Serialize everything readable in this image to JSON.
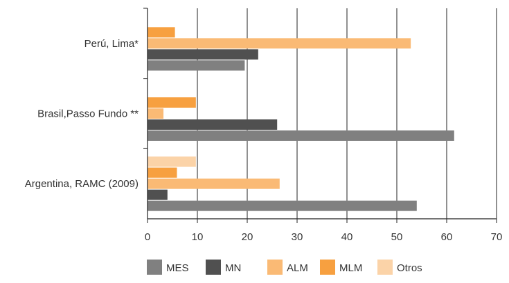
{
  "chart_data": {
    "type": "bar",
    "orientation": "horizontal",
    "categories": [
      "Perú, Lima*",
      "Brasil,Passo Fundo **",
      "Argentina, RAMC (2009)"
    ],
    "series": [
      {
        "name": "MES",
        "color": "#808080",
        "values": [
          19.5,
          61.5,
          54
        ]
      },
      {
        "name": "MN",
        "color": "#505050",
        "values": [
          22.2,
          26,
          4
        ]
      },
      {
        "name": "ALM",
        "color": "#FABA75",
        "values": [
          52.8,
          3.2,
          26.5
        ]
      },
      {
        "name": "MLM",
        "color": "#F7A040",
        "values": [
          5.5,
          9.7,
          5.9
        ]
      },
      {
        "name": "Otros",
        "color": "#FBD3A8",
        "values": [
          null,
          null,
          9.7
        ]
      }
    ],
    "x_ticks": [
      "0",
      "10",
      "20",
      "30",
      "40",
      "50",
      "60",
      "70"
    ],
    "xlim": [
      0,
      70
    ],
    "grid": "vertical",
    "legend": "bottom",
    "title": "",
    "xlabel": "",
    "ylabel": ""
  }
}
